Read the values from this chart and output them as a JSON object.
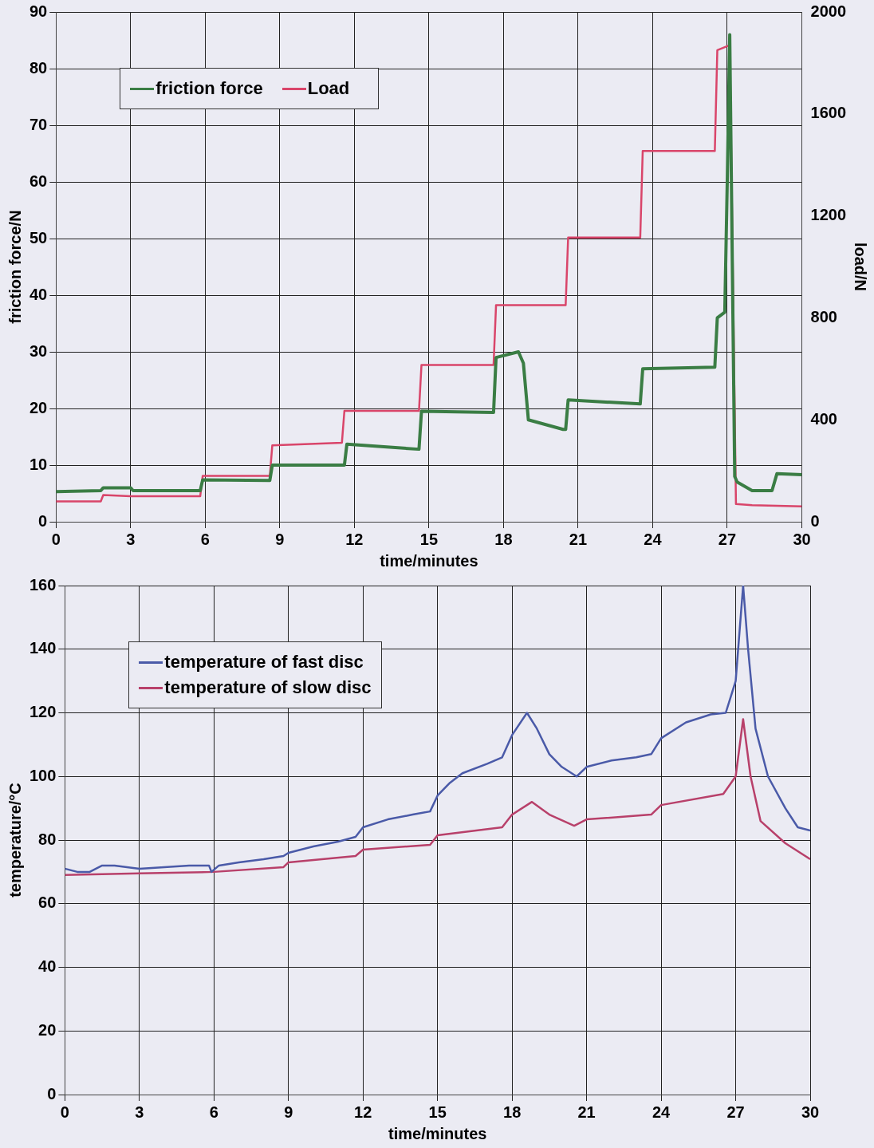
{
  "chart_data": [
    {
      "type": "line",
      "xlabel": "time/minutes",
      "ylabel": "friction force/N",
      "y2label": "load/N",
      "xlim": [
        0,
        30
      ],
      "xticks": [
        0,
        3,
        6,
        9,
        12,
        15,
        18,
        21,
        24,
        27,
        30
      ],
      "ylim": [
        0,
        90
      ],
      "yticks": [
        0,
        10,
        20,
        30,
        40,
        50,
        60,
        70,
        80,
        90
      ],
      "y2lim": [
        0,
        2000
      ],
      "y2ticks": [
        0,
        400,
        800,
        1200,
        1600,
        2000
      ],
      "grid": true,
      "legend": "top left",
      "marker": "none",
      "line_style": "solid",
      "series": [
        {
          "name": "friction force",
          "color": "#3a7d44",
          "x": [
            0,
            1.8,
            1.9,
            3,
            3.1,
            5.8,
            5.9,
            8.6,
            8.7,
            11.6,
            11.7,
            14.6,
            14.7,
            17.6,
            17.7,
            18.6,
            18.8,
            19,
            20.4,
            20.5,
            20.6,
            23.5,
            23.6,
            26.5,
            26.6,
            26.9,
            27,
            27.1,
            27.3,
            27.4,
            28,
            28.8,
            29,
            30
          ],
          "values": [
            5.3,
            5.5,
            6,
            6,
            5.5,
            5.5,
            7.4,
            7.3,
            10,
            10,
            13.7,
            12.8,
            19.5,
            19.3,
            29,
            30,
            28,
            18,
            16.3,
            16.3,
            21.5,
            20.8,
            27,
            27.3,
            36,
            37,
            60,
            86,
            8,
            7,
            5.5,
            5.5,
            8.5,
            8.3
          ]
        },
        {
          "name": "Load",
          "color": "#d9456a",
          "axis": "y2",
          "x": [
            0,
            1.8,
            1.9,
            3,
            5.8,
            5.9,
            8.6,
            8.7,
            11.5,
            11.6,
            14.6,
            14.7,
            17.6,
            17.7,
            20.5,
            20.6,
            23.5,
            23.6,
            26.5,
            26.6,
            27.1,
            27.35,
            28,
            30
          ],
          "values": [
            80,
            80,
            105,
            100,
            100,
            180,
            180,
            300,
            310,
            435,
            435,
            615,
            615,
            850,
            850,
            1115,
            1115,
            1455,
            1455,
            1850,
            1870,
            70,
            65,
            60
          ]
        }
      ]
    },
    {
      "type": "line",
      "xlabel": "time/minutes",
      "ylabel": "temperature/°C",
      "xlim": [
        0,
        30
      ],
      "xticks": [
        0,
        3,
        6,
        9,
        12,
        15,
        18,
        21,
        24,
        27,
        30
      ],
      "ylim": [
        0,
        160
      ],
      "yticks": [
        0,
        20,
        40,
        60,
        80,
        100,
        120,
        140,
        160
      ],
      "grid": true,
      "legend": "top left",
      "marker": "none",
      "line_style": "solid",
      "series": [
        {
          "name": "temperature of fast disc",
          "color": "#4a5aa8",
          "x": [
            0,
            0.5,
            1,
            1.5,
            2,
            3,
            4,
            5,
            5.8,
            5.9,
            6.2,
            7,
            8,
            8.8,
            9,
            10,
            11,
            11.7,
            12,
            13,
            14,
            14.7,
            15,
            15.5,
            16,
            17,
            17.6,
            18,
            18.6,
            19,
            19.5,
            20,
            20.6,
            21,
            22,
            23,
            23.6,
            24,
            25,
            26,
            26.6,
            26.8,
            27,
            27.3,
            27.5,
            27.8,
            28.3,
            29,
            29.5,
            30
          ],
          "values": [
            71,
            70,
            70,
            72,
            72,
            71,
            71.5,
            72,
            72,
            70,
            72,
            73,
            74,
            75,
            76,
            78,
            79.5,
            81,
            84,
            86.5,
            88,
            89,
            94,
            98,
            101,
            104,
            106,
            113,
            120,
            115,
            107,
            103,
            100,
            103,
            105,
            106,
            107,
            112,
            117,
            119.5,
            120,
            125,
            130,
            160,
            140,
            115,
            100,
            90,
            84,
            83
          ]
        },
        {
          "name": "temperature of slow disc",
          "color": "#b8406a",
          "x": [
            0,
            3,
            6,
            8.8,
            9,
            11.7,
            12,
            14.7,
            15,
            17.6,
            18,
            18.8,
            19.5,
            20.5,
            21,
            23.6,
            24,
            26.5,
            27,
            27.3,
            27.6,
            28,
            29,
            30
          ],
          "values": [
            69,
            69.5,
            70,
            71.5,
            73,
            75,
            77,
            78.5,
            81.5,
            84,
            88,
            92,
            88,
            84.5,
            86.5,
            88,
            91,
            94.5,
            100,
            118,
            100,
            86,
            79,
            74
          ]
        }
      ]
    }
  ]
}
